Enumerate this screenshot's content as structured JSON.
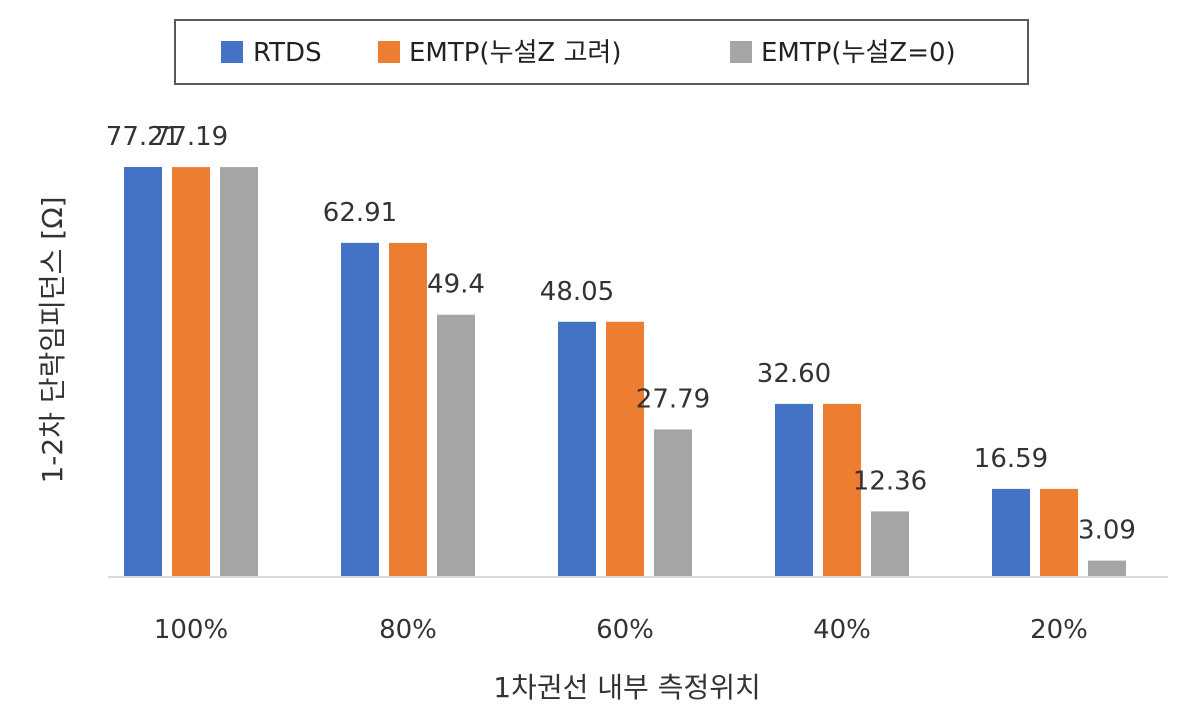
{
  "chart_data": {
    "type": "bar",
    "title": "",
    "xlabel": "1차권선 내부 측정위치",
    "ylabel": "1-2차 단락임피던스 [Ω]",
    "categories": [
      "100%",
      "80%",
      "60%",
      "40%",
      "20%"
    ],
    "series": [
      {
        "name": "RTDS",
        "color": "#4472C4",
        "values": [
          77.21,
          62.91,
          48.05,
          32.6,
          16.59
        ],
        "labels": [
          "77.21",
          "62.91",
          "48.05",
          "32.60",
          "16.59"
        ]
      },
      {
        "name": "EMTP(누설Z 고려)",
        "color": "#ED7D31",
        "values": [
          77.19,
          62.91,
          48.05,
          32.6,
          16.59
        ],
        "labels": [
          "77.19",
          "",
          "",
          "",
          ""
        ]
      },
      {
        "name": "EMTP(누설Z=0)",
        "color": "#A5A5A5",
        "values": [
          77.19,
          49.4,
          27.79,
          12.36,
          3.09
        ],
        "labels": [
          "",
          "49.4",
          "27.79",
          "12.36",
          "3.09"
        ]
      }
    ],
    "ylim": [
      0,
      77.21
    ],
    "legend_position": "top",
    "grid": false
  }
}
